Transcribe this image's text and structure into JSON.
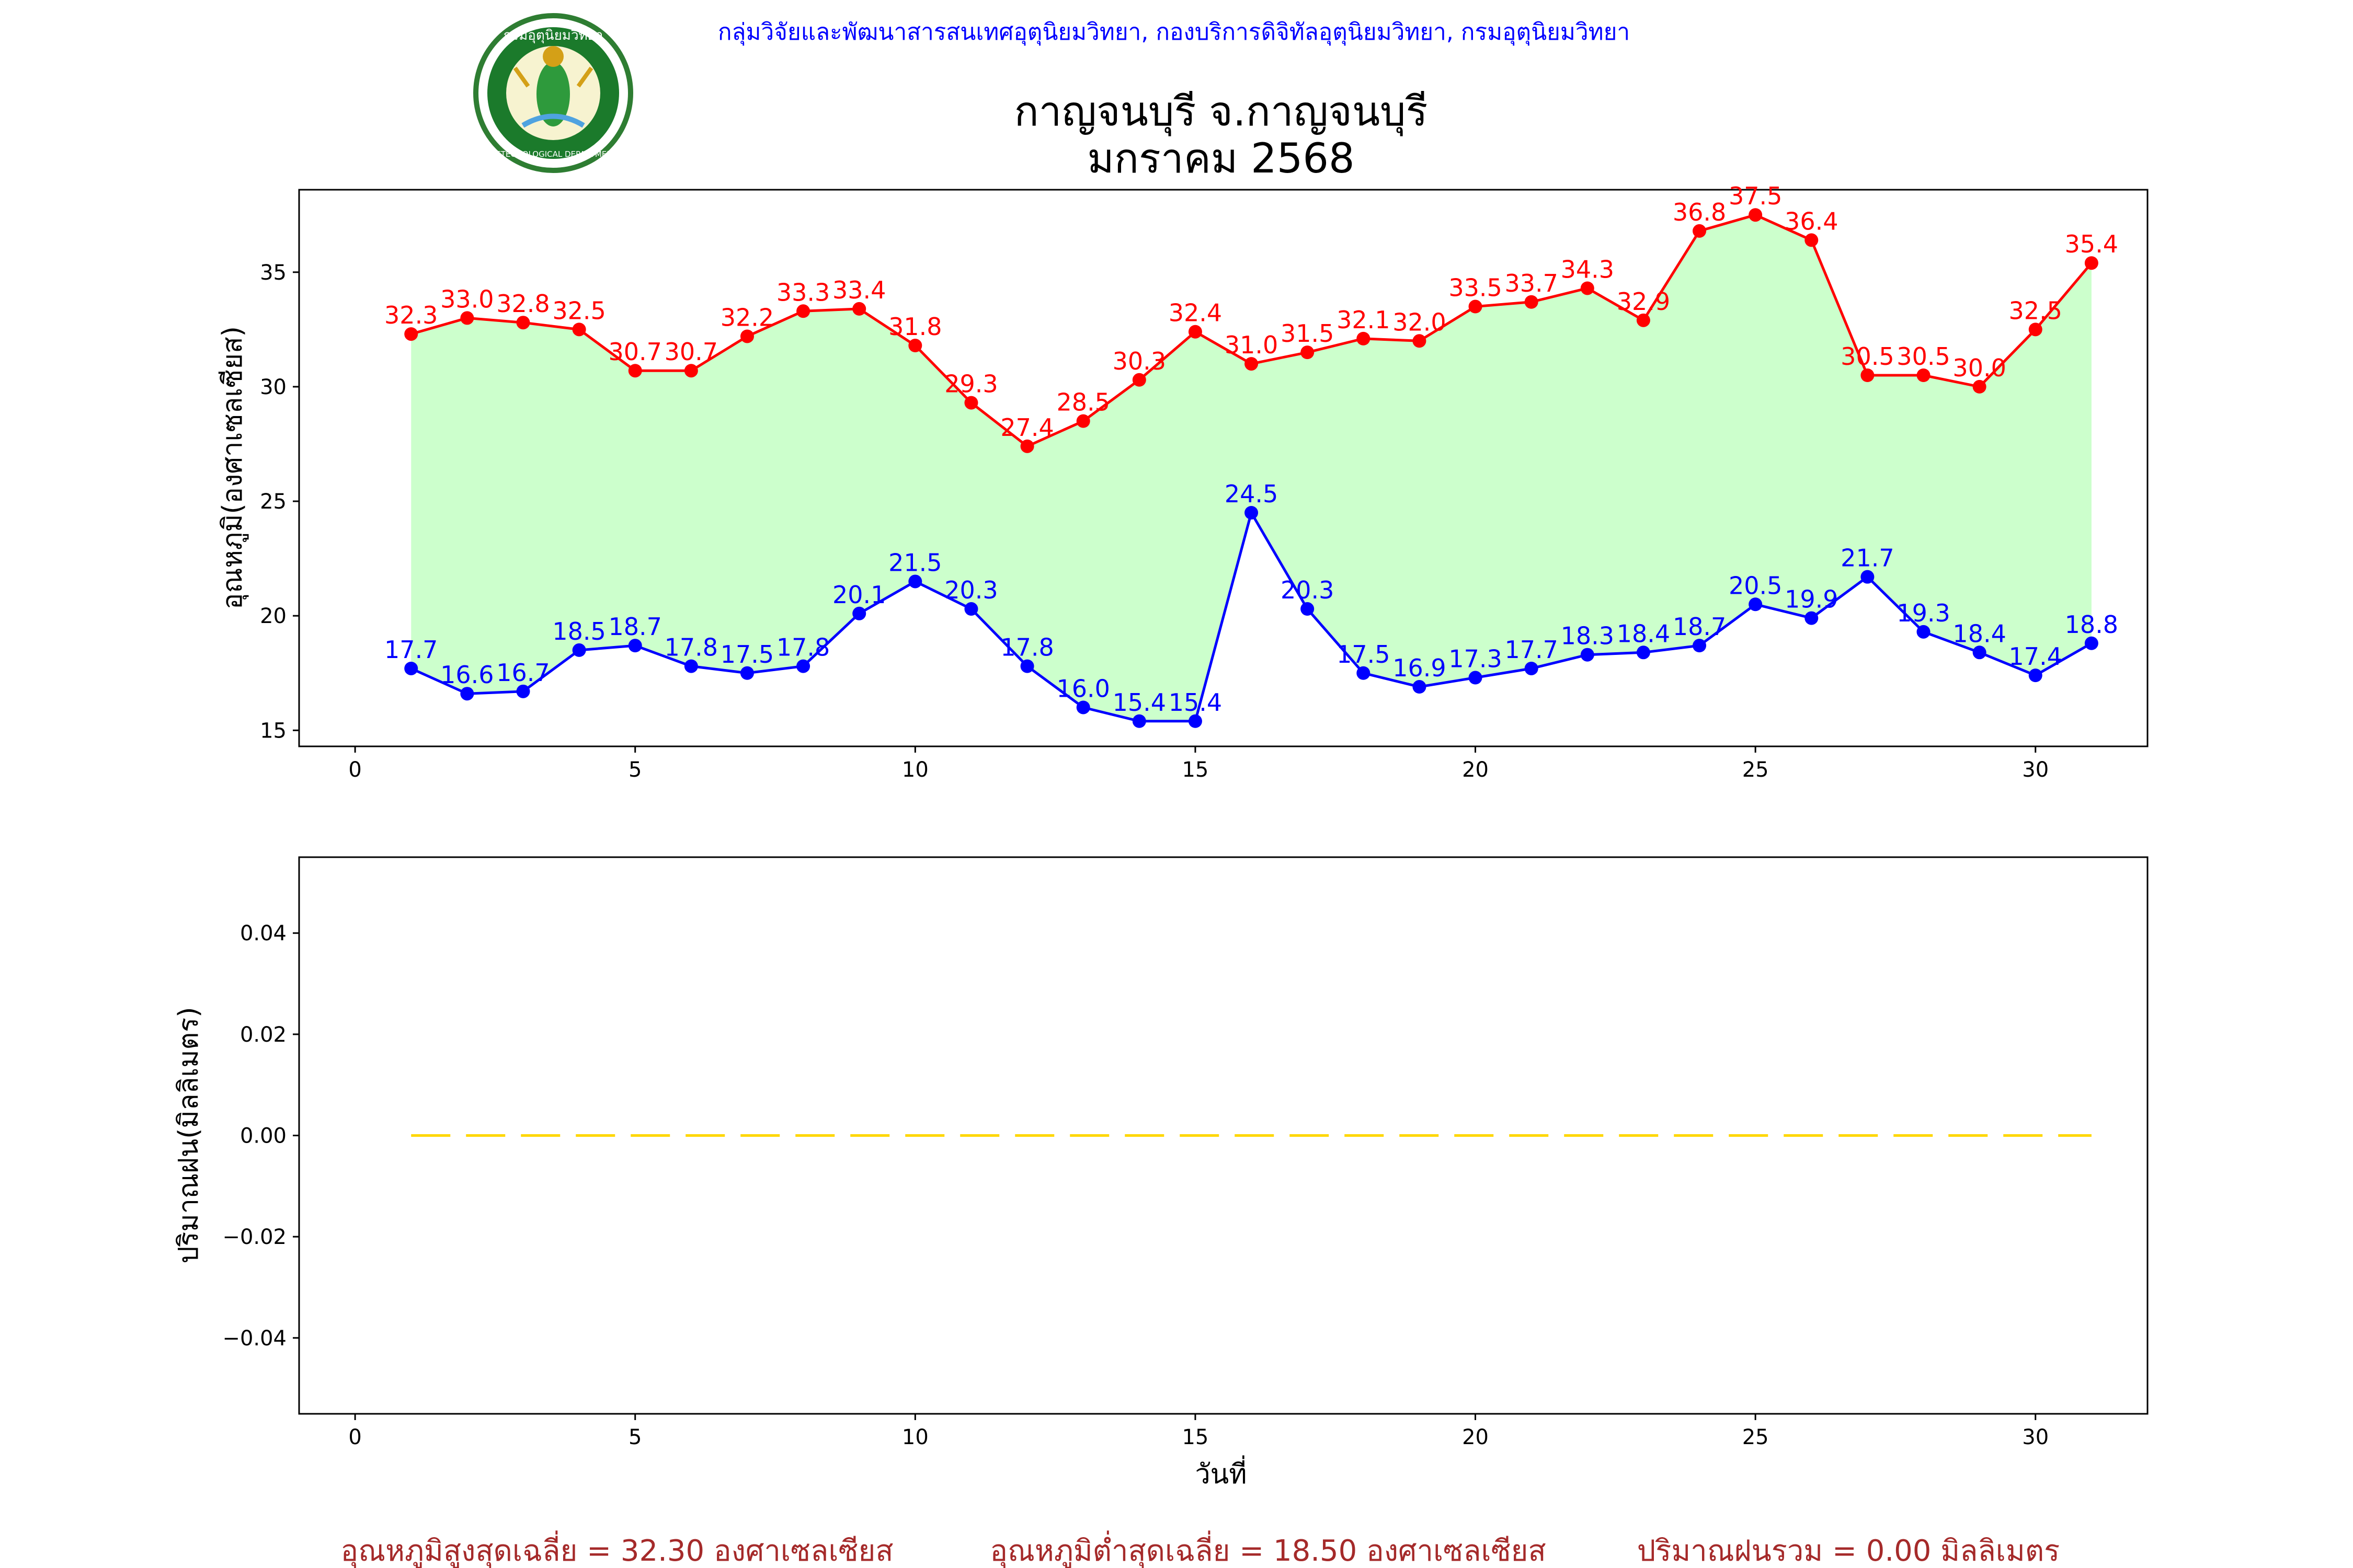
{
  "header": {
    "credit": "กลุ่มวิจัยและพัฒนาสารสนเทศอุตุนิยมวิทยา, กองบริการดิจิทัลอุตุนิยมวิทยา, กรมอุตุนิยมวิทยา",
    "logo": {
      "top_text": "กรมอุตุนิยมวิทยา",
      "bottom_text": "METEOROLOGICAL DEPARTMENT"
    },
    "title_line1": "กาญจนบุรี จ.กาญจนบุรี",
    "title_line2": "มกราคม 2568"
  },
  "footer": {
    "avg_max": "อุณหภูมิสูงสุดเฉลี่ย = 32.30 องศาเซลเซียส",
    "avg_min": "อุณหภูมิต่ำสุดเฉลี่ย = 18.50 องศาเซลเซียส",
    "rain_total": "ปริมาณฝนรวม = 0.00 มิลลิเมตร"
  },
  "colors": {
    "max": "#ff0000",
    "min": "#0000ff",
    "fill": "#ccffcc",
    "rain": "#ffd700",
    "credit": "#0000ff",
    "footer": "#a52a2a"
  },
  "chart_data": [
    {
      "type": "line",
      "ylabel": "อุณหภูมิ(องศาเซลเซียส)",
      "xlabel": "",
      "xlim": [
        -1,
        32
      ],
      "ylim": [
        14.3,
        38.6
      ],
      "xticks": [
        0,
        5,
        10,
        15,
        20,
        25,
        30
      ],
      "yticks": [
        15,
        20,
        25,
        30,
        35
      ],
      "grid": false,
      "fill_between": true,
      "x": [
        1,
        2,
        3,
        4,
        5,
        6,
        7,
        8,
        9,
        10,
        11,
        12,
        13,
        14,
        15,
        16,
        17,
        18,
        19,
        20,
        21,
        22,
        23,
        24,
        25,
        26,
        27,
        28,
        29,
        30,
        31
      ],
      "series": [
        {
          "key": "max",
          "values": [
            32.3,
            33.0,
            32.8,
            32.5,
            30.7,
            30.7,
            32.2,
            33.3,
            33.4,
            31.8,
            29.3,
            27.4,
            28.5,
            30.3,
            32.4,
            31.0,
            31.5,
            32.1,
            32.0,
            33.5,
            33.7,
            34.3,
            32.9,
            36.8,
            37.5,
            36.4,
            30.5,
            30.5,
            30.0,
            32.5,
            35.4
          ]
        },
        {
          "key": "min",
          "values": [
            17.7,
            16.6,
            16.7,
            18.5,
            18.7,
            17.8,
            17.5,
            17.8,
            20.1,
            21.5,
            20.3,
            17.8,
            16.0,
            15.4,
            15.4,
            24.5,
            20.3,
            17.5,
            16.9,
            17.3,
            17.7,
            18.3,
            18.4,
            18.7,
            20.5,
            19.9,
            21.7,
            19.3,
            18.4,
            17.4,
            18.8
          ]
        }
      ]
    },
    {
      "type": "line",
      "ylabel": "ปริมาณฝน(มิลลิเมตร)",
      "xlabel": "วันที่",
      "xlim": [
        -1,
        32
      ],
      "ylim": [
        -0.055,
        0.055
      ],
      "xticks": [
        0,
        5,
        10,
        15,
        20,
        25,
        30
      ],
      "yticks": [
        -0.04,
        -0.02,
        0.0,
        0.02,
        0.04
      ],
      "grid": false,
      "linestyle": "dashed",
      "x": [
        1,
        2,
        3,
        4,
        5,
        6,
        7,
        8,
        9,
        10,
        11,
        12,
        13,
        14,
        15,
        16,
        17,
        18,
        19,
        20,
        21,
        22,
        23,
        24,
        25,
        26,
        27,
        28,
        29,
        30,
        31
      ],
      "series": [
        {
          "key": "rain",
          "values": [
            0,
            0,
            0,
            0,
            0,
            0,
            0,
            0,
            0,
            0,
            0,
            0,
            0,
            0,
            0,
            0,
            0,
            0,
            0,
            0,
            0,
            0,
            0,
            0,
            0,
            0,
            0,
            0,
            0,
            0,
            0
          ]
        }
      ]
    }
  ]
}
